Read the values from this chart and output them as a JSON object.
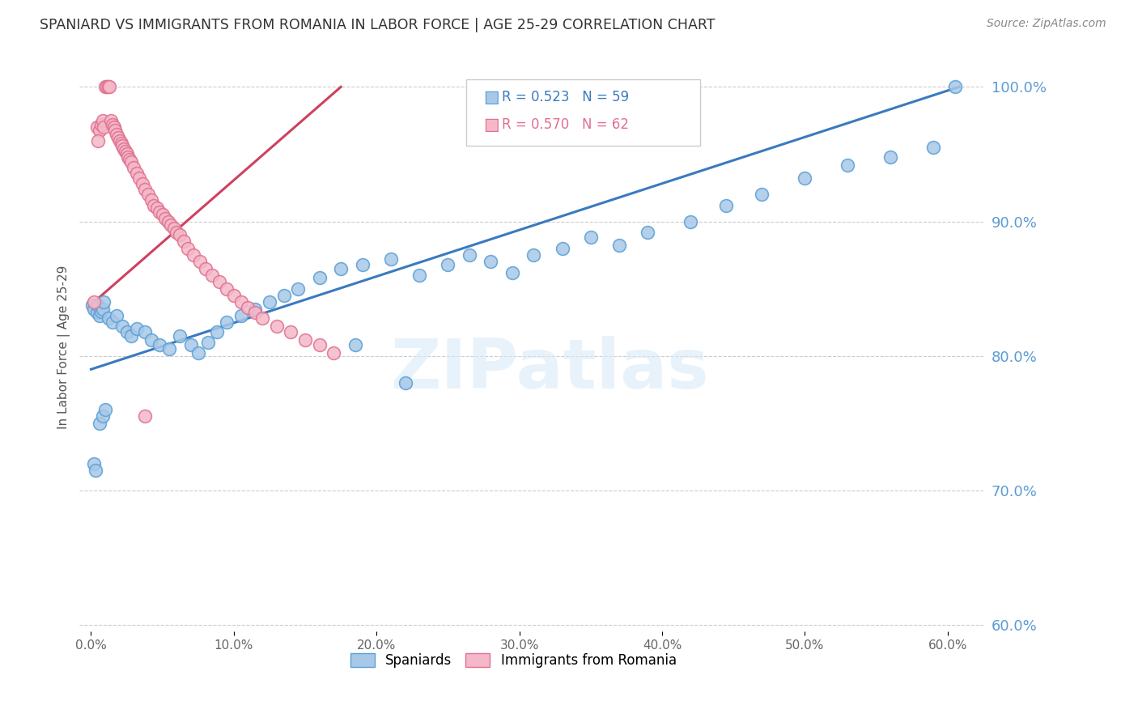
{
  "title": "SPANIARD VS IMMIGRANTS FROM ROMANIA IN LABOR FORCE | AGE 25-29 CORRELATION CHART",
  "source": "Source: ZipAtlas.com",
  "ylabel": "In Labor Force | Age 25-29",
  "legend_label1": "Spaniards",
  "legend_label2": "Immigrants from Romania",
  "r1": 0.523,
  "n1": 59,
  "r2": 0.57,
  "n2": 62,
  "color_blue_fill": "#a8c8e8",
  "color_blue_edge": "#5a9fd4",
  "color_pink_fill": "#f4b8c8",
  "color_pink_edge": "#e07090",
  "color_blue_line": "#3a7abf",
  "color_pink_line": "#d04060",
  "color_right_labels": "#5b9bd5",
  "color_grid": "#cccccc",
  "color_title": "#333333",
  "xmin": -0.008,
  "xmax": 0.625,
  "ymin": 0.595,
  "ymax": 1.018,
  "yticks": [
    0.6,
    0.7,
    0.8,
    0.9,
    1.0
  ],
  "xticks": [
    0.0,
    0.1,
    0.2,
    0.3,
    0.4,
    0.5,
    0.6
  ],
  "blue_x": [
    0.001,
    0.002,
    0.004,
    0.005,
    0.006,
    0.007,
    0.008,
    0.009,
    0.012,
    0.015,
    0.018,
    0.022,
    0.025,
    0.028,
    0.032,
    0.038,
    0.042,
    0.048,
    0.055,
    0.062,
    0.07,
    0.075,
    0.082,
    0.088,
    0.095,
    0.105,
    0.115,
    0.125,
    0.135,
    0.145,
    0.16,
    0.175,
    0.19,
    0.21,
    0.23,
    0.25,
    0.265,
    0.28,
    0.295,
    0.31,
    0.33,
    0.35,
    0.37,
    0.39,
    0.42,
    0.445,
    0.47,
    0.5,
    0.53,
    0.56,
    0.59,
    0.605,
    0.002,
    0.003,
    0.006,
    0.008,
    0.01,
    0.185,
    0.22
  ],
  "blue_y": [
    0.838,
    0.835,
    0.832,
    0.838,
    0.83,
    0.833,
    0.835,
    0.84,
    0.828,
    0.825,
    0.83,
    0.822,
    0.818,
    0.815,
    0.82,
    0.818,
    0.812,
    0.808,
    0.805,
    0.815,
    0.808,
    0.802,
    0.81,
    0.818,
    0.825,
    0.83,
    0.835,
    0.84,
    0.845,
    0.85,
    0.858,
    0.865,
    0.868,
    0.872,
    0.86,
    0.868,
    0.875,
    0.87,
    0.862,
    0.875,
    0.88,
    0.888,
    0.882,
    0.892,
    0.9,
    0.912,
    0.92,
    0.932,
    0.942,
    0.948,
    0.955,
    1.0,
    0.72,
    0.715,
    0.75,
    0.755,
    0.76,
    0.808,
    0.78
  ],
  "pink_x": [
    0.002,
    0.004,
    0.006,
    0.007,
    0.008,
    0.009,
    0.01,
    0.011,
    0.012,
    0.013,
    0.014,
    0.015,
    0.016,
    0.017,
    0.018,
    0.019,
    0.02,
    0.021,
    0.022,
    0.023,
    0.024,
    0.025,
    0.026,
    0.027,
    0.028,
    0.03,
    0.032,
    0.034,
    0.036,
    0.038,
    0.04,
    0.042,
    0.044,
    0.046,
    0.048,
    0.05,
    0.052,
    0.054,
    0.056,
    0.058,
    0.06,
    0.062,
    0.065,
    0.068,
    0.072,
    0.076,
    0.08,
    0.085,
    0.09,
    0.095,
    0.1,
    0.105,
    0.11,
    0.115,
    0.12,
    0.13,
    0.14,
    0.15,
    0.16,
    0.17,
    0.005,
    0.038
  ],
  "pink_y": [
    0.84,
    0.97,
    0.968,
    0.972,
    0.975,
    0.97,
    1.0,
    1.0,
    1.0,
    1.0,
    0.975,
    0.972,
    0.97,
    0.968,
    0.965,
    0.962,
    0.96,
    0.958,
    0.956,
    0.954,
    0.952,
    0.95,
    0.948,
    0.946,
    0.944,
    0.94,
    0.936,
    0.932,
    0.928,
    0.924,
    0.92,
    0.916,
    0.912,
    0.91,
    0.907,
    0.905,
    0.902,
    0.9,
    0.897,
    0.895,
    0.892,
    0.89,
    0.885,
    0.88,
    0.875,
    0.87,
    0.865,
    0.86,
    0.855,
    0.85,
    0.845,
    0.84,
    0.836,
    0.832,
    0.828,
    0.822,
    0.818,
    0.812,
    0.808,
    0.802,
    0.96,
    0.755
  ],
  "blue_line_x": [
    0.0,
    0.608
  ],
  "blue_line_y": [
    0.79,
    1.0
  ],
  "pink_line_x": [
    0.002,
    0.175
  ],
  "pink_line_y": [
    0.84,
    1.0
  ],
  "watermark_text": "ZIPatlas",
  "background_color": "#ffffff"
}
